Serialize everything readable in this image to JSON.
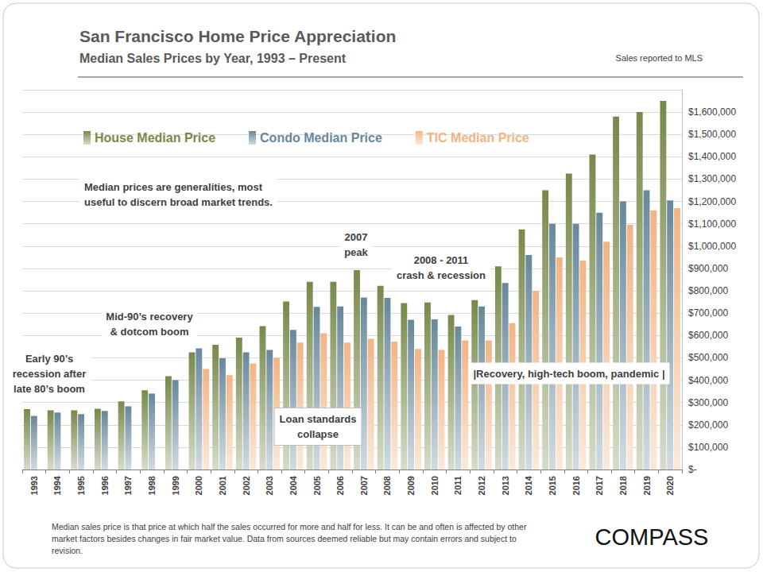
{
  "chart_data": {
    "type": "bar",
    "title": "San Francisco Home Price Appreciation",
    "subtitle": "Median Sales Prices by Year, 1993 – Present",
    "source": "Sales reported to MLS",
    "categories": [
      "1993",
      "1994",
      "1995",
      "1996",
      "1997",
      "1998",
      "1999",
      "2000",
      "2001",
      "2002",
      "2003",
      "2004",
      "2005",
      "2006",
      "2007",
      "2008",
      "2009",
      "2010",
      "2011",
      "2012",
      "2013",
      "2014",
      "2015",
      "2016",
      "2017",
      "2018",
      "2019",
      "2020"
    ],
    "series": [
      {
        "name": "House Median Price",
        "color": "#77894a",
        "values": [
          270000,
          265000,
          265000,
          272000,
          305000,
          355000,
          418000,
          525000,
          558000,
          590000,
          642000,
          752000,
          840000,
          840000,
          893000,
          822000,
          745000,
          748000,
          692000,
          758000,
          910000,
          1075000,
          1250000,
          1325000,
          1410000,
          1580000,
          1600000,
          1650000
        ]
      },
      {
        "name": "Condo Median Price",
        "color": "#67889b",
        "values": [
          240000,
          255000,
          248000,
          262000,
          283000,
          340000,
          400000,
          542000,
          498000,
          525000,
          535000,
          625000,
          728000,
          730000,
          770000,
          768000,
          670000,
          672000,
          640000,
          730000,
          835000,
          960000,
          1100000,
          1100000,
          1150000,
          1200000,
          1250000,
          1205000
        ]
      },
      {
        "name": "TIC Median Price",
        "color": "#f2b484",
        "values": [
          null,
          null,
          null,
          null,
          null,
          null,
          null,
          450000,
          422000,
          475000,
          500000,
          568000,
          610000,
          568000,
          585000,
          573000,
          540000,
          535000,
          578000,
          578000,
          655000,
          800000,
          950000,
          935000,
          1020000,
          1095000,
          1160000,
          1170000
        ]
      }
    ],
    "ylim": [
      0,
      1700000
    ],
    "yticks": [
      {
        "value": 0,
        "label": "$-"
      },
      {
        "value": 100000,
        "label": "$100,000"
      },
      {
        "value": 200000,
        "label": "$200,000"
      },
      {
        "value": 300000,
        "label": "$300,000"
      },
      {
        "value": 400000,
        "label": "$400,000"
      },
      {
        "value": 500000,
        "label": "$500,000"
      },
      {
        "value": 600000,
        "label": "$600,000"
      },
      {
        "value": 700000,
        "label": "$700,000"
      },
      {
        "value": 800000,
        "label": "$800,000"
      },
      {
        "value": 900000,
        "label": "$900,000"
      },
      {
        "value": 1000000,
        "label": "$1,000,000"
      },
      {
        "value": 1100000,
        "label": "$1,100,000"
      },
      {
        "value": 1200000,
        "label": "$1,200,000"
      },
      {
        "value": 1300000,
        "label": "$1,300,000"
      },
      {
        "value": 1400000,
        "label": "$1,400,000"
      },
      {
        "value": 1500000,
        "label": "$1,500,000"
      },
      {
        "value": 1600000,
        "label": "$1,600,000"
      }
    ],
    "grid": true,
    "legend": "upper-left",
    "annotations": [
      "Median prices are generalities, most\nuseful to discern broad market trends.",
      "2007\npeak",
      "2008 - 2011\ncrash & recession",
      "Mid-90’s recovery\n& dotcom boom",
      "Early 90’s\nrecession after\nlate 80’s boom",
      "Loan standards\ncollapse",
      "|Recovery, high-tech boom, pandemic |"
    ],
    "footnote": "Median sales price is that price at which half the sales occurred for more and half for less. It can be and often is affected by other market factors besides changes in fair market value. Data from sources deemed reliable but may contain errors and subject to revision.",
    "logo": "COMPASS"
  }
}
